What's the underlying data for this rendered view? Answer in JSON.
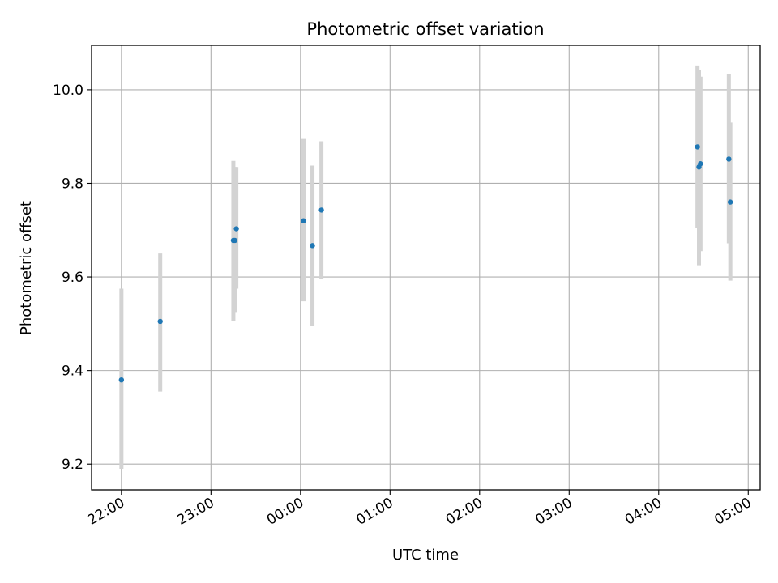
{
  "chart_data": {
    "type": "scatter",
    "title": "Photometric offset variation",
    "xlabel": "UTC time",
    "ylabel": "Photometric offset",
    "grid": true,
    "xlim": [
      "21:40",
      "05:08"
    ],
    "ylim": [
      9.145,
      10.095
    ],
    "x_ticks": [
      "22:00",
      "23:00",
      "00:00",
      "01:00",
      "02:00",
      "03:00",
      "04:00",
      "05:00"
    ],
    "y_ticks": [
      "9.2",
      "9.4",
      "9.6",
      "9.8",
      "10.0"
    ],
    "colors": {
      "marker": "#1f77b4",
      "errorbar": "#d3d3d3",
      "grid": "#b0b0b0"
    },
    "series": [
      {
        "points": [
          {
            "x": "22:00",
            "y": 9.38,
            "ymin": 9.19,
            "ymax": 9.575
          },
          {
            "x": "22:26",
            "y": 9.505,
            "ymin": 9.355,
            "ymax": 9.65
          },
          {
            "x": "23:15",
            "y": 9.678,
            "ymin": 9.505,
            "ymax": 9.848
          },
          {
            "x": "23:16",
            "y": 9.678,
            "ymin": 9.525,
            "ymax": 9.835
          },
          {
            "x": "23:17",
            "y": 9.703,
            "ymin": 9.575,
            "ymax": 9.835
          },
          {
            "x": "00:02",
            "y": 9.72,
            "ymin": 9.548,
            "ymax": 9.895
          },
          {
            "x": "00:08",
            "y": 9.667,
            "ymin": 9.495,
            "ymax": 9.838
          },
          {
            "x": "00:14",
            "y": 9.743,
            "ymin": 9.595,
            "ymax": 9.89
          },
          {
            "x": "04:26",
            "y": 9.878,
            "ymin": 9.705,
            "ymax": 10.052
          },
          {
            "x": "04:27",
            "y": 9.835,
            "ymin": 9.625,
            "ymax": 10.042
          },
          {
            "x": "04:28",
            "y": 9.842,
            "ymin": 9.655,
            "ymax": 10.028
          },
          {
            "x": "04:47",
            "y": 9.852,
            "ymin": 9.672,
            "ymax": 10.033
          },
          {
            "x": "04:48",
            "y": 9.76,
            "ymin": 9.592,
            "ymax": 9.93
          }
        ]
      }
    ]
  }
}
